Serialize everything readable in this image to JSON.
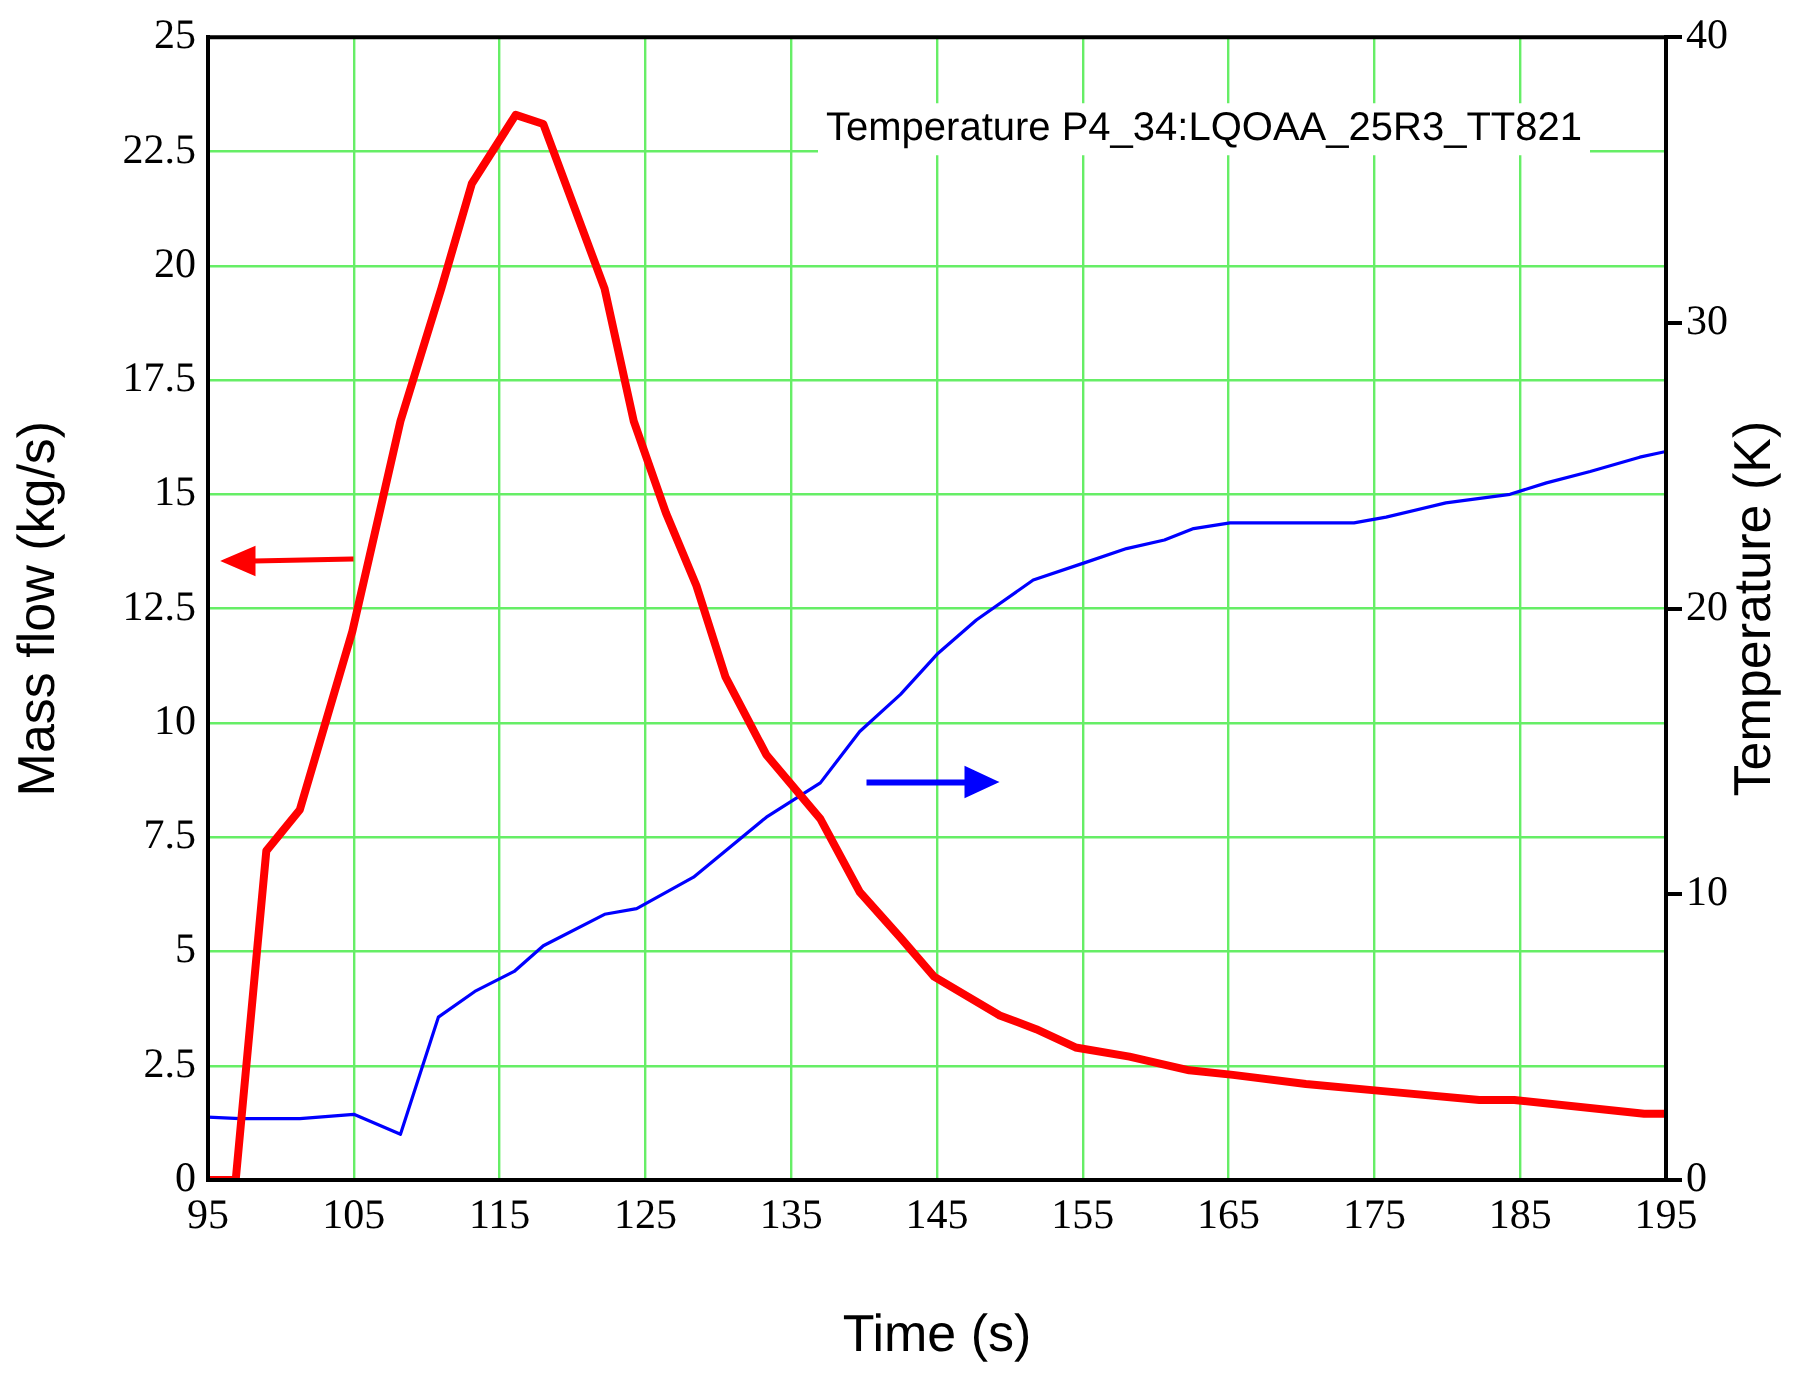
{
  "chart_data": {
    "type": "line",
    "xlabel": "Time (s)",
    "ylabel": "Mass flow (kg/s)",
    "y2label": "Temperature (K)",
    "annotations": [
      "Temperature P4_34:LQOAA_25R3_TT821"
    ],
    "xlim": [
      95,
      195
    ],
    "xticks": [
      95,
      105,
      115,
      125,
      135,
      145,
      155,
      165,
      175,
      185,
      195
    ],
    "ylim": [
      0,
      25
    ],
    "yticks": [
      0,
      2.5,
      5,
      7.5,
      10,
      12.5,
      15,
      17.5,
      20,
      22.5,
      25
    ],
    "y2lim": [
      0,
      40
    ],
    "y2ticks": [
      0,
      10,
      20,
      30,
      40
    ],
    "grid": true,
    "legend": false,
    "marker": "none",
    "line_style": "solid",
    "series": [
      {
        "color": "#ff0000",
        "axis": "y",
        "x": [
          95,
          96.9,
          99,
          101.3,
          104.9,
          108.2,
          111,
          113.1,
          116.1,
          118,
          122.2,
          124.2,
          126.4,
          128.5,
          130.5,
          133.3,
          137,
          139.7,
          142.5,
          144.8,
          149.3,
          151.8,
          154.5,
          158.2,
          162.3,
          165.3,
          170.3,
          175.4,
          182.2,
          184.6,
          193.5,
          195
        ],
        "values": [
          0,
          0,
          7.2,
          8.1,
          12,
          16.6,
          19.5,
          21.8,
          23.3,
          23.1,
          19.5,
          16.6,
          14.6,
          13,
          11,
          9.3,
          7.9,
          6.3,
          5.3,
          4.45,
          3.6,
          3.3,
          2.9,
          2.7,
          2.4,
          2.3,
          2.1,
          1.95,
          1.75,
          1.75,
          1.45,
          1.45
        ]
      },
      {
        "color": "#0000ff",
        "axis": "y2",
        "x": [
          95,
          97.2,
          101.3,
          105,
          108.2,
          110.8,
          113.3,
          116,
          118,
          122.2,
          124.4,
          128.3,
          133.3,
          137,
          139.7,
          142.5,
          145,
          147.7,
          151.6,
          155.1,
          158,
          160.6,
          162.6,
          165.1,
          173.6,
          175.8,
          179.9,
          184.3,
          186.8,
          189.8,
          193.2,
          195
        ],
        "values": [
          2.2,
          2.15,
          2.15,
          2.3,
          1.6,
          5.7,
          6.6,
          7.3,
          8.2,
          9.3,
          9.5,
          10.6,
          12.7,
          13.9,
          15.7,
          17,
          18.4,
          19.6,
          21,
          21.6,
          22.1,
          22.4,
          22.8,
          23,
          23,
          23.2,
          23.7,
          24,
          24.4,
          24.8,
          25.3,
          25.5
        ]
      }
    ]
  }
}
